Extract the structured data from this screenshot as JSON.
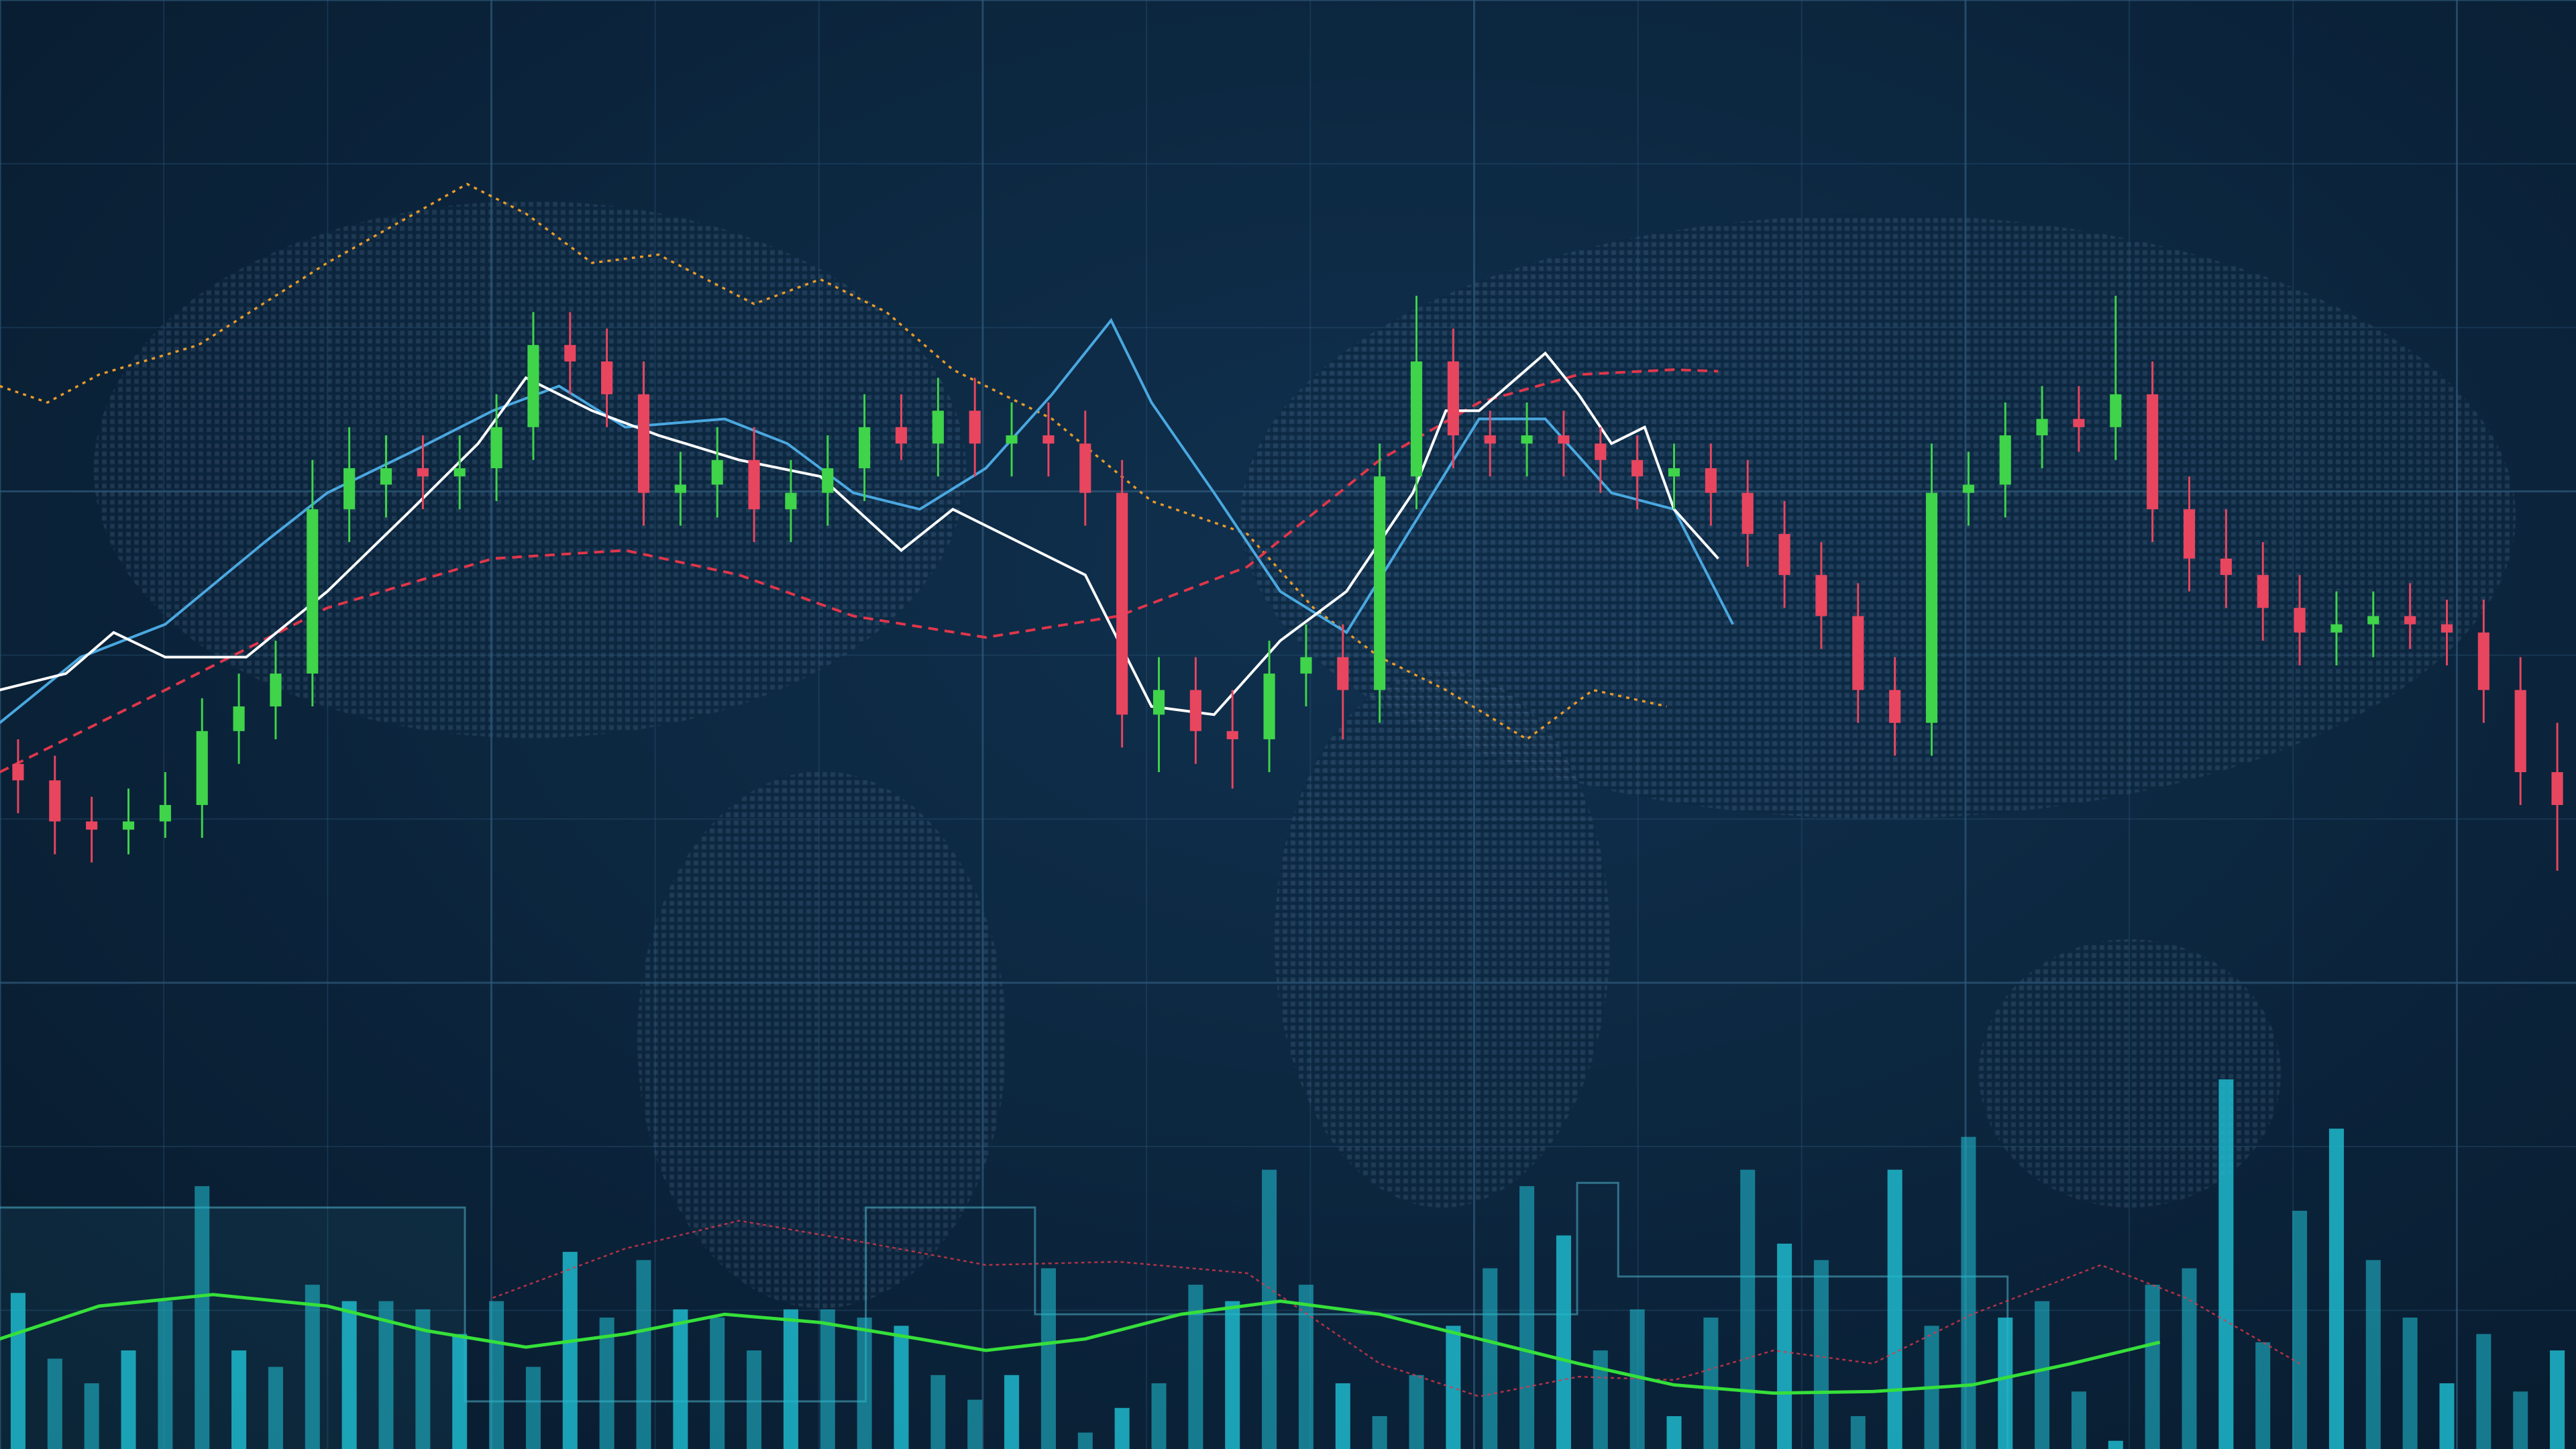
{
  "chart_data": {
    "type": "candlestick",
    "title": "",
    "xlabel": "",
    "ylabel": "",
    "grid": true,
    "legend": "none",
    "colors": {
      "up": "#3fd44a",
      "down": "#e8455f",
      "volume": "#1fb8cc",
      "ma_white": "#ffffff",
      "ma_blue": "#4aa8e0",
      "trend_red": "#e0364a",
      "envelope_orange": "#e89a2a",
      "oscillator": "#36e03a",
      "background": "#0c2740",
      "grid": "#2f5a7a"
    },
    "ohlc": [
      [
        27,
        30,
        21,
        25
      ],
      [
        25,
        28,
        16,
        20
      ],
      [
        20,
        23,
        15,
        19
      ],
      [
        19,
        24,
        16,
        20
      ],
      [
        20,
        26,
        18,
        22
      ],
      [
        22,
        35,
        18,
        31
      ],
      [
        31,
        38,
        27,
        34
      ],
      [
        34,
        42,
        30,
        38
      ],
      [
        38,
        64,
        34,
        58
      ],
      [
        58,
        68,
        54,
        63
      ],
      [
        61,
        67,
        57,
        63
      ],
      [
        63,
        67,
        58,
        62
      ],
      [
        62,
        67,
        58,
        63
      ],
      [
        63,
        72,
        59,
        68
      ],
      [
        68,
        82,
        64,
        78
      ],
      [
        78,
        82,
        72,
        76
      ],
      [
        76,
        80,
        68,
        72
      ],
      [
        72,
        76,
        56,
        60
      ],
      [
        60,
        65,
        56,
        61
      ],
      [
        61,
        68,
        57,
        64
      ],
      [
        64,
        68,
        54,
        58
      ],
      [
        58,
        64,
        54,
        60
      ],
      [
        60,
        67,
        56,
        63
      ],
      [
        63,
        72,
        59,
        68
      ],
      [
        68,
        72,
        64,
        66
      ],
      [
        66,
        74,
        62,
        70
      ],
      [
        70,
        74,
        62,
        66
      ],
      [
        66,
        71,
        62,
        67
      ],
      [
        67,
        71,
        62,
        66
      ],
      [
        66,
        70,
        56,
        60
      ],
      [
        60,
        64,
        29,
        33
      ],
      [
        33,
        40,
        26,
        36
      ],
      [
        36,
        40,
        27,
        31
      ],
      [
        31,
        36,
        24,
        30
      ],
      [
        30,
        42,
        26,
        38
      ],
      [
        38,
        44,
        34,
        40
      ],
      [
        40,
        44,
        30,
        36
      ],
      [
        36,
        66,
        32,
        62
      ],
      [
        62,
        84,
        58,
        76
      ],
      [
        76,
        80,
        63,
        67
      ],
      [
        67,
        70,
        62,
        66
      ],
      [
        66,
        71,
        62,
        67
      ],
      [
        67,
        70,
        62,
        66
      ],
      [
        66,
        68,
        60,
        64
      ],
      [
        64,
        67,
        58,
        62
      ],
      [
        62,
        66,
        58,
        63
      ],
      [
        63,
        66,
        56,
        60
      ],
      [
        60,
        64,
        51,
        55
      ],
      [
        55,
        59,
        46,
        50
      ],
      [
        50,
        54,
        41,
        45
      ],
      [
        45,
        49,
        32,
        36
      ],
      [
        36,
        40,
        28,
        32
      ],
      [
        32,
        66,
        28,
        60
      ],
      [
        60,
        65,
        56,
        61
      ],
      [
        61,
        71,
        57,
        67
      ],
      [
        67,
        73,
        63,
        69
      ],
      [
        69,
        73,
        65,
        68
      ],
      [
        68,
        84,
        64,
        72
      ],
      [
        72,
        76,
        54,
        58
      ],
      [
        58,
        62,
        48,
        52
      ],
      [
        52,
        58,
        46,
        50
      ],
      [
        50,
        54,
        42,
        46
      ],
      [
        46,
        50,
        39,
        43
      ],
      [
        43,
        48,
        39,
        44
      ],
      [
        44,
        48,
        40,
        45
      ],
      [
        45,
        49,
        41,
        44
      ],
      [
        44,
        47,
        39,
        43
      ],
      [
        43,
        47,
        32,
        36
      ],
      [
        36,
        40,
        22,
        26
      ],
      [
        26,
        32,
        14,
        22
      ]
    ],
    "ma_white": [
      [
        -0.5,
        36
      ],
      [
        1.3,
        38
      ],
      [
        2.6,
        43
      ],
      [
        4,
        40
      ],
      [
        6.2,
        40
      ],
      [
        8.4,
        48
      ],
      [
        10.7,
        58
      ],
      [
        12.5,
        66
      ],
      [
        13.8,
        74
      ],
      [
        15.6,
        70
      ],
      [
        17.4,
        67
      ],
      [
        19.6,
        64
      ],
      [
        21.8,
        62
      ],
      [
        24,
        53
      ],
      [
        25.4,
        58
      ],
      [
        27.2,
        54
      ],
      [
        29,
        50
      ],
      [
        30.8,
        34
      ],
      [
        32.5,
        33
      ],
      [
        34.3,
        42
      ],
      [
        36.1,
        48
      ],
      [
        37.9,
        60
      ],
      [
        38.8,
        70
      ],
      [
        39.7,
        70
      ],
      [
        41.5,
        77
      ],
      [
        42.4,
        72
      ],
      [
        43.3,
        66
      ],
      [
        44.2,
        68
      ],
      [
        45,
        58
      ],
      [
        46.2,
        52
      ]
    ],
    "ma_blue": [
      [
        -0.5,
        32
      ],
      [
        1.7,
        40
      ],
      [
        4,
        44
      ],
      [
        6.7,
        54
      ],
      [
        8.4,
        60
      ],
      [
        10.7,
        65
      ],
      [
        12.9,
        70
      ],
      [
        14.7,
        73
      ],
      [
        16.5,
        68
      ],
      [
        19.2,
        69
      ],
      [
        20.9,
        66
      ],
      [
        22.7,
        60
      ],
      [
        24.5,
        58
      ],
      [
        26.3,
        63
      ],
      [
        28.1,
        72
      ],
      [
        29.7,
        81
      ],
      [
        30.8,
        71
      ],
      [
        32.5,
        60
      ],
      [
        34.3,
        48
      ],
      [
        36.1,
        43
      ],
      [
        37.9,
        56
      ],
      [
        39.7,
        69
      ],
      [
        41.5,
        69
      ],
      [
        43.3,
        60
      ],
      [
        45,
        58
      ],
      [
        46.6,
        44
      ]
    ],
    "trend_red": [
      [
        -0.5,
        26
      ],
      [
        4,
        36
      ],
      [
        8.4,
        46
      ],
      [
        12.9,
        52
      ],
      [
        16.5,
        53
      ],
      [
        19.6,
        50
      ],
      [
        22.7,
        45
      ],
      [
        26.3,
        42.4
      ],
      [
        29.9,
        45
      ],
      [
        33.4,
        51
      ],
      [
        37,
        64
      ],
      [
        39.7,
        71
      ],
      [
        42.4,
        74.4
      ],
      [
        45,
        75
      ],
      [
        46.2,
        74.8
      ]
    ],
    "envelope_orange": [
      [
        -0.5,
        73
      ],
      [
        0.8,
        71
      ],
      [
        2.2,
        74.4
      ],
      [
        4.9,
        78
      ],
      [
        8.4,
        88
      ],
      [
        12.2,
        97.6
      ],
      [
        13.8,
        94
      ],
      [
        15.6,
        88
      ],
      [
        17.4,
        89
      ],
      [
        20,
        83
      ],
      [
        21.8,
        86
      ],
      [
        23.6,
        82
      ],
      [
        25.4,
        75
      ],
      [
        28.1,
        69
      ],
      [
        30.8,
        59
      ],
      [
        33.4,
        55
      ],
      [
        35.2,
        46
      ],
      [
        37,
        40
      ],
      [
        38.8,
        36
      ],
      [
        41,
        30
      ],
      [
        42.8,
        36
      ],
      [
        44.8,
        34
      ]
    ],
    "volume": [
      95,
      55,
      40,
      60,
      90,
      160,
      60,
      50,
      100,
      90,
      90,
      85,
      70,
      90,
      50,
      120,
      80,
      115,
      85,
      80,
      60,
      85,
      85,
      80,
      75,
      45,
      30,
      45,
      110,
      10,
      25,
      40,
      100,
      90,
      170,
      100,
      40,
      20,
      45,
      75,
      110,
      160,
      130,
      60,
      85,
      20,
      80,
      170,
      125,
      115,
      20,
      170,
      75,
      190,
      80,
      90,
      35,
      5,
      100,
      110,
      225,
      65,
      145,
      195,
      115,
      80,
      40,
      70,
      35,
      60
    ],
    "oscillator": [
      [
        -0.5,
        67
      ],
      [
        2.2,
        87
      ],
      [
        5.3,
        94
      ],
      [
        8.4,
        87
      ],
      [
        11.1,
        72
      ],
      [
        13.8,
        62
      ],
      [
        16.5,
        70
      ],
      [
        19.2,
        82
      ],
      [
        21.8,
        77
      ],
      [
        24.5,
        67
      ],
      [
        26.3,
        60
      ],
      [
        29,
        67
      ],
      [
        31.6,
        82
      ],
      [
        34.3,
        90
      ],
      [
        37,
        82
      ],
      [
        39.7,
        67
      ],
      [
        42.4,
        52
      ],
      [
        45,
        39
      ],
      [
        47.7,
        34
      ],
      [
        50.4,
        35
      ],
      [
        53.1,
        39
      ],
      [
        55.8,
        52
      ],
      [
        58.2,
        65
      ]
    ],
    "oscillator_signal": [
      [
        12.9,
        92
      ],
      [
        16.5,
        122
      ],
      [
        19.6,
        139
      ],
      [
        22.7,
        127
      ],
      [
        26.3,
        112
      ],
      [
        29.9,
        114
      ],
      [
        33.4,
        107
      ],
      [
        37,
        52
      ],
      [
        39.7,
        32
      ],
      [
        42.4,
        44
      ],
      [
        45,
        42
      ],
      [
        47.7,
        60
      ],
      [
        50.4,
        52
      ],
      [
        53.1,
        82
      ],
      [
        56.6,
        112
      ],
      [
        58.9,
        92
      ],
      [
        62,
        52
      ]
    ]
  }
}
